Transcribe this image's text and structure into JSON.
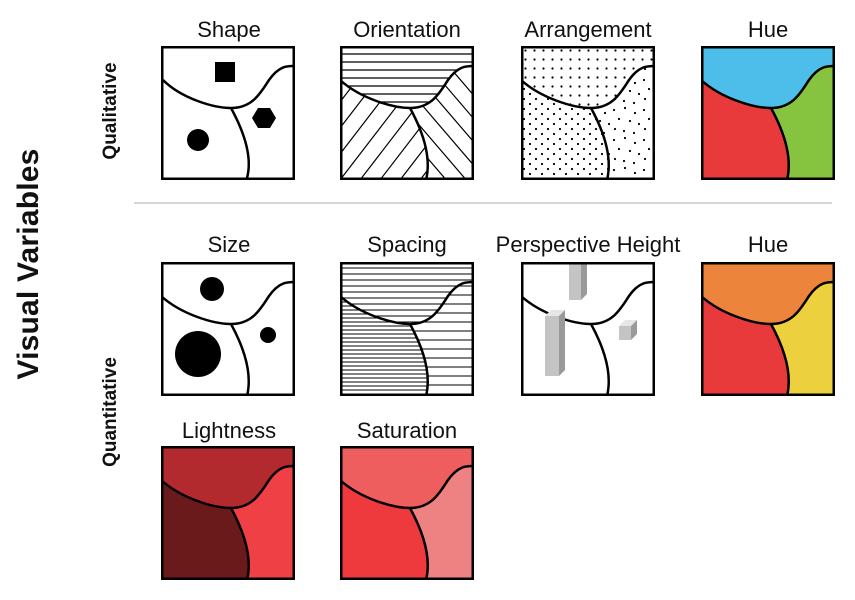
{
  "main_title": "Visual Variables",
  "rows": {
    "qualitative": "Qualitative",
    "quantitative": "Quantitative"
  },
  "panels": [
    {
      "key": "shape",
      "title": "Shape",
      "region_colors": [
        "#ffffff",
        "#ffffff",
        "#ffffff"
      ]
    },
    {
      "key": "orientation",
      "title": "Orientation",
      "region_colors": [
        "#ffffff",
        "#ffffff",
        "#ffffff"
      ]
    },
    {
      "key": "arrangement",
      "title": "Arrangement",
      "region_colors": [
        "#ffffff",
        "#ffffff",
        "#ffffff"
      ]
    },
    {
      "key": "hue_qual",
      "title": "Hue",
      "region_colors": [
        "#4dbde9",
        "#e8393b",
        "#86c440"
      ]
    },
    {
      "key": "size",
      "title": "Size",
      "region_colors": [
        "#ffffff",
        "#ffffff",
        "#ffffff"
      ]
    },
    {
      "key": "spacing",
      "title": "Spacing",
      "region_colors": [
        "#ffffff",
        "#ffffff",
        "#ffffff"
      ]
    },
    {
      "key": "perspective",
      "title": "Perspective Height",
      "region_colors": [
        "#ffffff",
        "#ffffff",
        "#ffffff"
      ]
    },
    {
      "key": "hue_quant",
      "title": "Hue",
      "region_colors": [
        "#ec853b",
        "#e8393b",
        "#ecd03e"
      ]
    },
    {
      "key": "lightness",
      "title": "Lightness",
      "region_colors": [
        "#b22a2e",
        "#6b1a1c",
        "#ee4045"
      ]
    },
    {
      "key": "saturation",
      "title": "Saturation",
      "region_colors": [
        "#ee5e5f",
        "#ee3a3c",
        "#ee8282"
      ]
    }
  ]
}
